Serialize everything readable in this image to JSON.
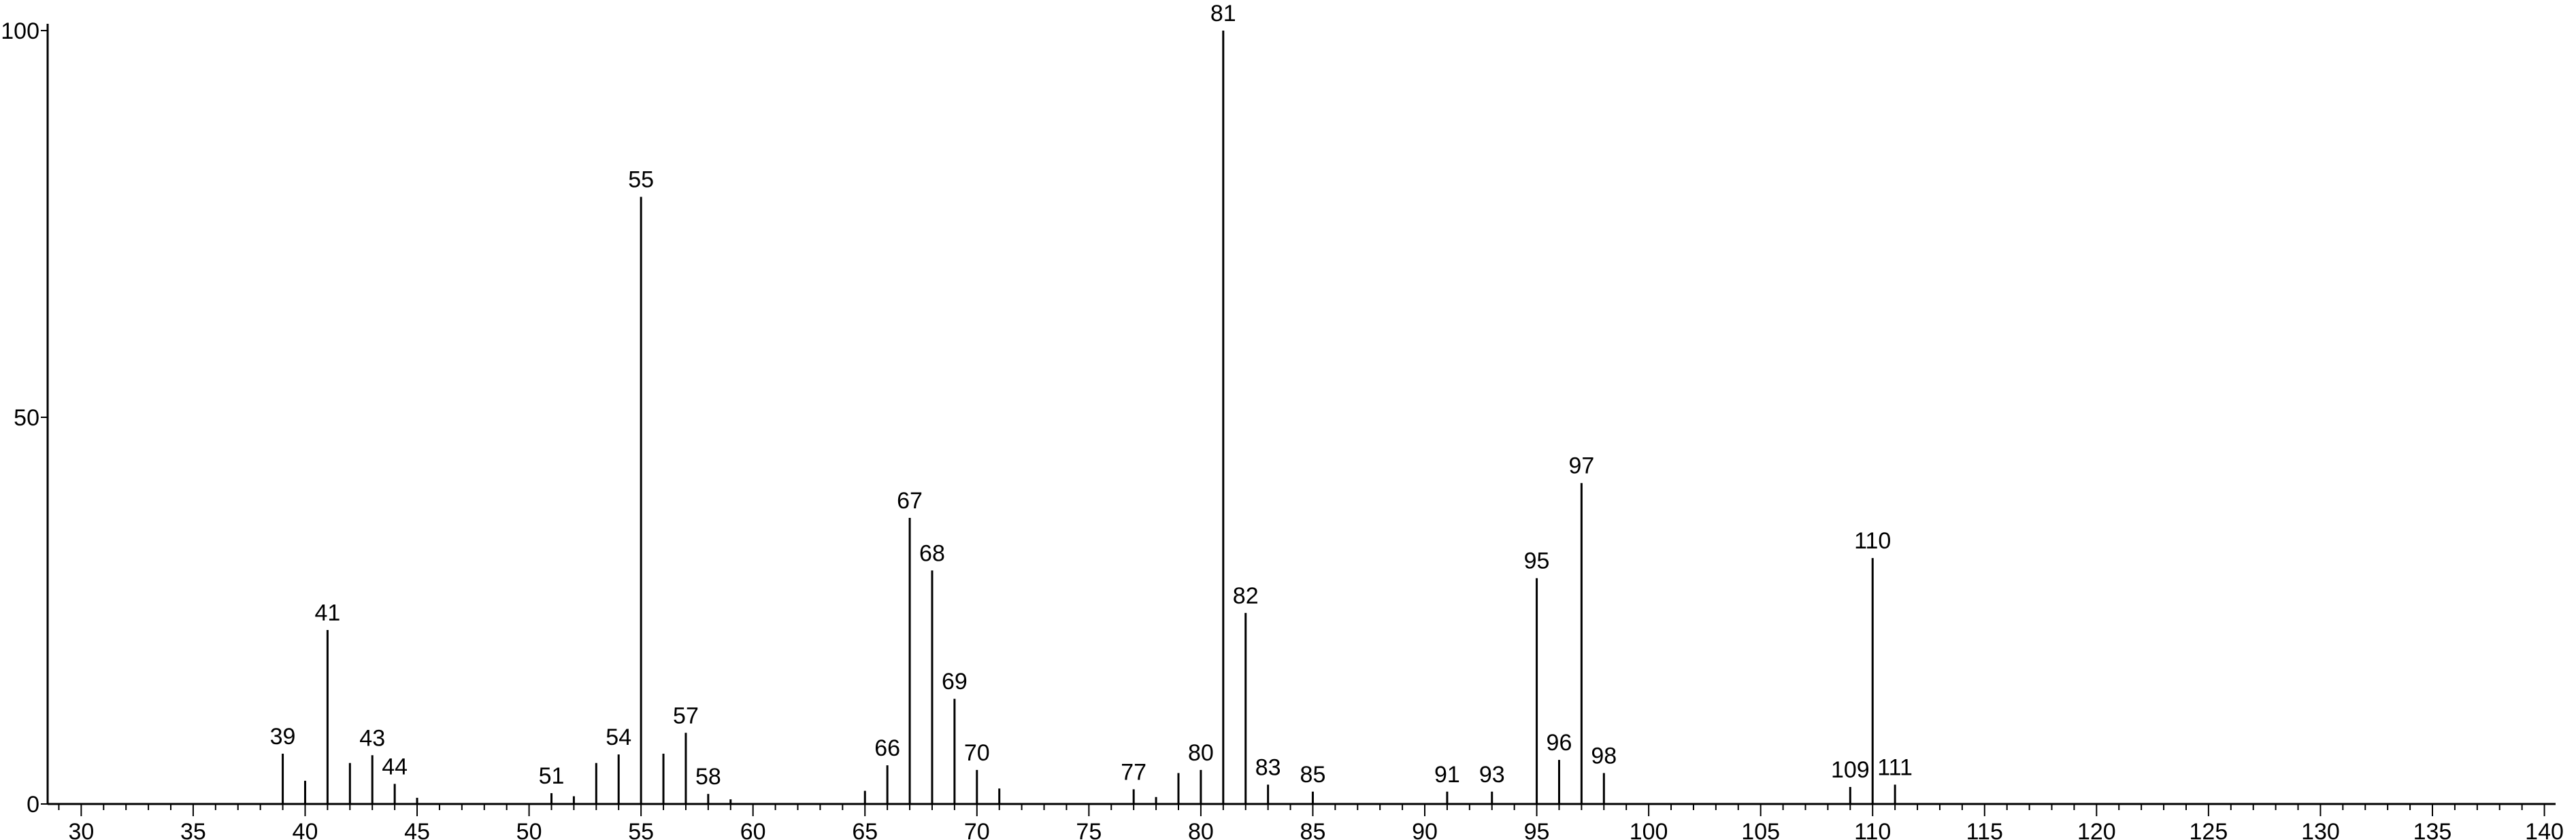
{
  "chart_data": {
    "type": "bar",
    "title": "",
    "xlabel": "",
    "ylabel": "",
    "xlim": [
      28.5,
      140.5
    ],
    "ylim": [
      0,
      100
    ],
    "grid": false,
    "x_ticks": [
      30,
      35,
      40,
      45,
      50,
      55,
      60,
      65,
      70,
      75,
      80,
      85,
      90,
      95,
      100,
      105,
      110,
      115,
      120,
      125,
      130,
      135,
      140
    ],
    "y_ticks": [
      0,
      50,
      100
    ],
    "peaks": [
      {
        "mz": 39,
        "intensity": 6.5,
        "label": "39"
      },
      {
        "mz": 40,
        "intensity": 3,
        "label": ""
      },
      {
        "mz": 41,
        "intensity": 22.5,
        "label": "41"
      },
      {
        "mz": 42,
        "intensity": 5.3,
        "label": ""
      },
      {
        "mz": 43,
        "intensity": 6.3,
        "label": "43"
      },
      {
        "mz": 44,
        "intensity": 2.6,
        "label": "44"
      },
      {
        "mz": 45,
        "intensity": 0.8,
        "label": ""
      },
      {
        "mz": 51,
        "intensity": 1.4,
        "label": "51"
      },
      {
        "mz": 52,
        "intensity": 1,
        "label": ""
      },
      {
        "mz": 53,
        "intensity": 5.3,
        "label": ""
      },
      {
        "mz": 54,
        "intensity": 6.4,
        "label": "54"
      },
      {
        "mz": 55,
        "intensity": 78.5,
        "label": "55"
      },
      {
        "mz": 56,
        "intensity": 6.5,
        "label": ""
      },
      {
        "mz": 57,
        "intensity": 9.2,
        "label": "57"
      },
      {
        "mz": 58,
        "intensity": 1.3,
        "label": "58"
      },
      {
        "mz": 59,
        "intensity": 0.6,
        "label": ""
      },
      {
        "mz": 65,
        "intensity": 1.7,
        "label": ""
      },
      {
        "mz": 66,
        "intensity": 5,
        "label": "66"
      },
      {
        "mz": 67,
        "intensity": 37,
        "label": "67"
      },
      {
        "mz": 68,
        "intensity": 30.2,
        "label": "68"
      },
      {
        "mz": 69,
        "intensity": 13.6,
        "label": "69"
      },
      {
        "mz": 70,
        "intensity": 4.4,
        "label": "70"
      },
      {
        "mz": 71,
        "intensity": 2,
        "label": ""
      },
      {
        "mz": 77,
        "intensity": 1.9,
        "label": "77"
      },
      {
        "mz": 78,
        "intensity": 0.9,
        "label": ""
      },
      {
        "mz": 79,
        "intensity": 4,
        "label": ""
      },
      {
        "mz": 80,
        "intensity": 4.4,
        "label": "80"
      },
      {
        "mz": 81,
        "intensity": 100,
        "label": "81"
      },
      {
        "mz": 82,
        "intensity": 24.7,
        "label": "82"
      },
      {
        "mz": 83,
        "intensity": 2.5,
        "label": "83"
      },
      {
        "mz": 85,
        "intensity": 1.6,
        "label": "85"
      },
      {
        "mz": 91,
        "intensity": 1.6,
        "label": "91"
      },
      {
        "mz": 93,
        "intensity": 1.6,
        "label": "93"
      },
      {
        "mz": 95,
        "intensity": 29.2,
        "label": "95"
      },
      {
        "mz": 96,
        "intensity": 5.7,
        "label": "96"
      },
      {
        "mz": 97,
        "intensity": 41.5,
        "label": "97"
      },
      {
        "mz": 98,
        "intensity": 4,
        "label": "98"
      },
      {
        "mz": 109,
        "intensity": 2.2,
        "label": "109"
      },
      {
        "mz": 110,
        "intensity": 31.8,
        "label": "110"
      },
      {
        "mz": 111,
        "intensity": 2.5,
        "label": "111"
      }
    ]
  }
}
